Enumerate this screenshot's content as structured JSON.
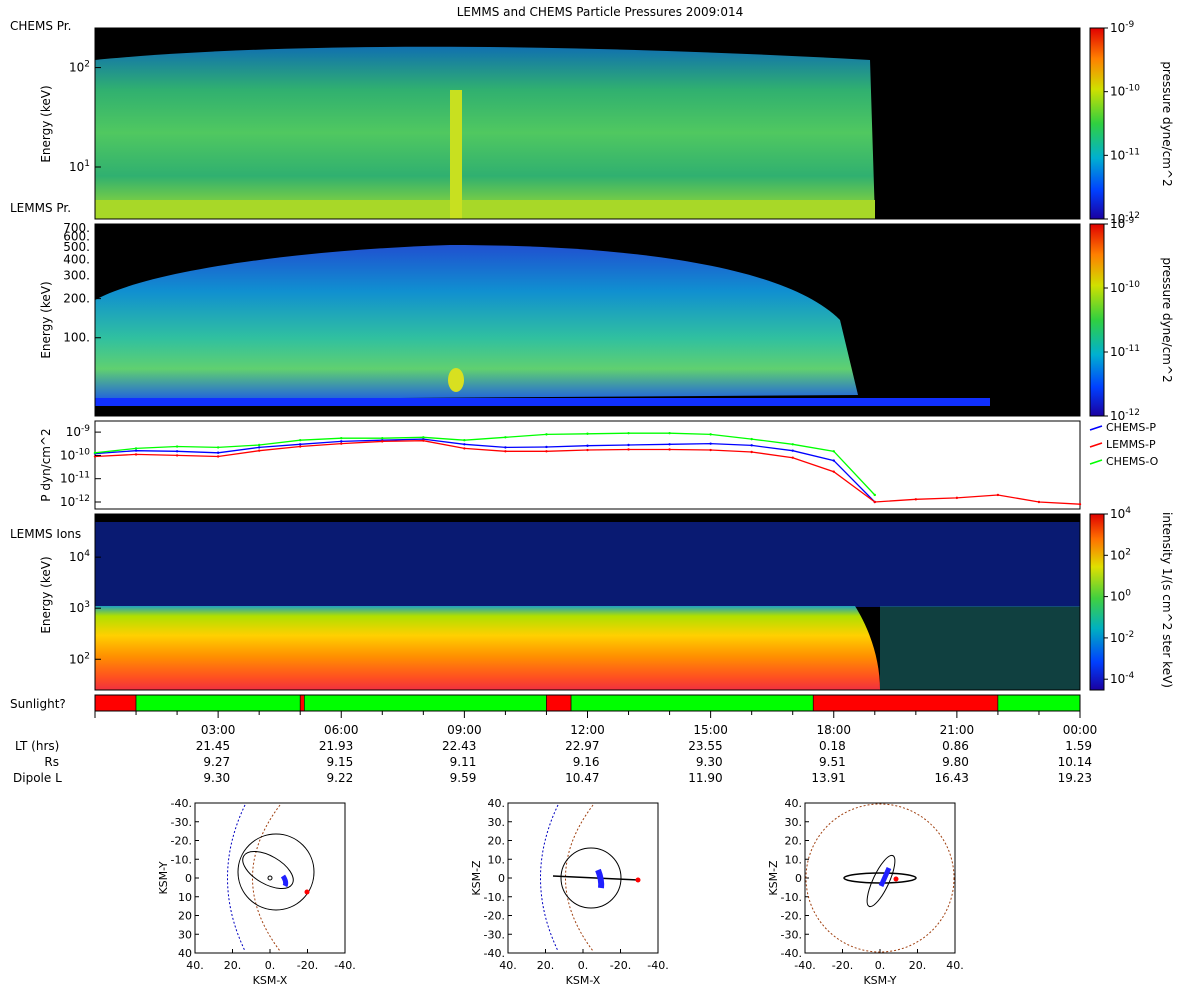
{
  "title": "LEMMS and CHEMS Particle Pressures  2009:014",
  "chart_data": [
    {
      "type": "heatmap",
      "name": "chems",
      "panel_label": "CHEMS Pr.",
      "ylabel": "Energy (keV)",
      "yscale": "log",
      "ylim": [
        3,
        250
      ],
      "yticks": [
        {
          "v": 10,
          "label": "10^1"
        },
        {
          "v": 100,
          "label": "10^2"
        }
      ],
      "colorbar": {
        "label": "pressure dyne/cm^2",
        "scale": "log",
        "range": [
          1e-12,
          1e-09
        ],
        "ticks": [
          {
            "v": 1e-09,
            "label": "10^-9"
          },
          {
            "v": 1e-10,
            "label": "10^-10"
          },
          {
            "v": 1e-11,
            "label": "10^-11"
          },
          {
            "v": 1e-12,
            "label": "10^-12"
          }
        ]
      },
      "data_end_hour": 18.8
    },
    {
      "type": "heatmap",
      "name": "lemms-pressure",
      "panel_label": "LEMMS Pr.",
      "ylabel": "Energy (keV)",
      "yscale": "log",
      "ylim": [
        25,
        750
      ],
      "yticks": [
        {
          "v": 100,
          "label": "100."
        },
        {
          "v": 200,
          "label": "200."
        },
        {
          "v": 300,
          "label": "300."
        },
        {
          "v": 400,
          "label": "400."
        },
        {
          "v": 500,
          "label": "500."
        },
        {
          "v": 600,
          "label": "600."
        },
        {
          "v": 700,
          "label": "700."
        }
      ],
      "colorbar": {
        "label": "pressure dyne/cm^2",
        "scale": "log",
        "range": [
          1e-12,
          1e-09
        ],
        "ticks": [
          {
            "v": 1e-09,
            "label": "10^-9"
          },
          {
            "v": 1e-10,
            "label": "10^-10"
          },
          {
            "v": 1e-11,
            "label": "10^-11"
          },
          {
            "v": 1e-12,
            "label": "10^-12"
          }
        ]
      },
      "data_end_hour": 18.5
    },
    {
      "type": "line",
      "name": "pressure-lines",
      "ylabel": "P dyn/cm^2",
      "yscale": "log",
      "ylim": [
        5e-13,
        3e-09
      ],
      "yticks": [
        {
          "v": 1e-09,
          "label": "10^-9"
        },
        {
          "v": 1e-10,
          "label": "10^-10"
        },
        {
          "v": 1e-11,
          "label": "10^-11"
        },
        {
          "v": 1e-12,
          "label": "10^-12"
        }
      ],
      "x": [
        0,
        1,
        2,
        3,
        4,
        5,
        6,
        7,
        8,
        9,
        10,
        11,
        12,
        13,
        14,
        15,
        16,
        17,
        18,
        19,
        20,
        21,
        22,
        23,
        24
      ],
      "series": [
        {
          "name": "CHEMS-P",
          "color": "#0000ff",
          "values": [
            1.2e-10,
            1.6e-10,
            1.5e-10,
            1.3e-10,
            2.2e-10,
            3e-10,
            4e-10,
            4.5e-10,
            5e-10,
            3e-10,
            2.2e-10,
            2.3e-10,
            2.6e-10,
            2.8e-10,
            3e-10,
            3.2e-10,
            2.7e-10,
            1.6e-10,
            6e-11,
            1e-12,
            null,
            null,
            null,
            null,
            null
          ]
        },
        {
          "name": "LEMMS-P",
          "color": "#ff0000",
          "values": [
            9e-11,
            1.1e-10,
            1e-10,
            9e-11,
            1.6e-10,
            2.4e-10,
            3.2e-10,
            4e-10,
            4.3e-10,
            2e-10,
            1.5e-10,
            1.5e-10,
            1.7e-10,
            1.8e-10,
            1.8e-10,
            1.7e-10,
            1.4e-10,
            8e-11,
            2e-11,
            1e-12,
            1.3e-12,
            1.5e-12,
            2e-12,
            1e-12,
            8e-13
          ]
        },
        {
          "name": "CHEMS-O",
          "color": "#00ff00",
          "values": [
            1.3e-10,
            2e-10,
            2.4e-10,
            2.2e-10,
            2.8e-10,
            4.5e-10,
            5.5e-10,
            5.5e-10,
            6e-10,
            4.5e-10,
            6e-10,
            8e-10,
            8.5e-10,
            9e-10,
            9e-10,
            8e-10,
            5e-10,
            3e-10,
            1.5e-10,
            2e-12,
            null,
            null,
            null,
            null,
            null
          ]
        }
      ]
    },
    {
      "type": "heatmap",
      "name": "lemms-ions",
      "panel_label": "LEMMS Ions",
      "ylabel": "Energy (keV)",
      "yscale": "log",
      "ylim": [
        25,
        70000
      ],
      "yticks": [
        {
          "v": 100,
          "label": "10^2"
        },
        {
          "v": 1000,
          "label": "10^3"
        },
        {
          "v": 10000,
          "label": "10^4"
        }
      ],
      "colorbar": {
        "label": "intensity 1/(s cm^2 ster keV)",
        "scale": "log",
        "range": [
          3e-05,
          10000.0
        ],
        "ticks": [
          {
            "v": 10000.0,
            "label": "10^4"
          },
          {
            "v": 100,
            "label": "10^2"
          },
          {
            "v": 1,
            "label": "10^0"
          },
          {
            "v": 0.01,
            "label": "10^-2"
          },
          {
            "v": 0.0001,
            "label": "10^-4"
          }
        ]
      },
      "data_end_hour": 19.0
    },
    {
      "type": "bar",
      "name": "sunlight",
      "label": "Sunlight?",
      "segments": [
        {
          "start": 0.0,
          "end": 1.0,
          "sunlit": false
        },
        {
          "start": 1.0,
          "end": 5.0,
          "sunlit": true
        },
        {
          "start": 5.0,
          "end": 5.1,
          "sunlit": false
        },
        {
          "start": 5.1,
          "end": 11.0,
          "sunlit": true
        },
        {
          "start": 11.0,
          "end": 11.6,
          "sunlit": false
        },
        {
          "start": 11.6,
          "end": 17.5,
          "sunlit": true
        },
        {
          "start": 17.5,
          "end": 22.0,
          "sunlit": false
        },
        {
          "start": 22.0,
          "end": 24.0,
          "sunlit": true
        }
      ]
    },
    {
      "type": "scatter",
      "name": "orbit-xy",
      "xlabel": "KSM-X",
      "ylabel": "KSM-Y",
      "xlim": [
        40,
        -40
      ],
      "ylim": [
        -40,
        40
      ],
      "xticks": [
        "40.",
        "20.",
        "0.",
        "-20.",
        "-40."
      ],
      "yticks": [
        "-40.",
        "-30.",
        "-20.",
        "-10.",
        "0",
        "10",
        "20",
        "30",
        "40"
      ]
    },
    {
      "type": "scatter",
      "name": "orbit-xz",
      "xlabel": "KSM-X",
      "ylabel": "KSM-Z",
      "xlim": [
        40,
        -40
      ],
      "ylim": [
        40,
        -40
      ],
      "xticks": [
        "40.",
        "20.",
        "0.",
        "-20.",
        "-40."
      ],
      "yticks": [
        "40.",
        "30.",
        "20.",
        "10.",
        "0",
        "-10.",
        "-20.",
        "-30.",
        "-40."
      ]
    },
    {
      "type": "scatter",
      "name": "orbit-yz",
      "xlabel": "KSM-Y",
      "ylabel": "KSM-Z",
      "xlim": [
        -40,
        40
      ],
      "ylim": [
        40,
        -40
      ],
      "xticks": [
        "-40.",
        "-20.",
        "0.",
        "20.",
        "40."
      ],
      "yticks": [
        "40.",
        "30.",
        "20.",
        "10.",
        "0",
        "-10.",
        "-20.",
        "-30.",
        "-40."
      ]
    }
  ],
  "time_axis": {
    "ticks": [
      "03:00",
      "06:00",
      "09:00",
      "12:00",
      "15:00",
      "18:00",
      "21:00",
      "00:00"
    ],
    "rows": [
      {
        "label": "LT (hrs)",
        "values": [
          "21.45",
          "21.93",
          "22.43",
          "22.97",
          "23.55",
          "0.18",
          "0.86",
          "1.59"
        ]
      },
      {
        "label": "Rs",
        "values": [
          "9.27",
          "9.15",
          "9.11",
          "9.16",
          "9.30",
          "9.51",
          "9.80",
          "10.14"
        ]
      },
      {
        "label": "Dipole L",
        "values": [
          "9.30",
          "9.22",
          "9.59",
          "10.47",
          "11.90",
          "13.91",
          "16.43",
          "19.23"
        ]
      }
    ]
  },
  "colors": {
    "sunlit": "#00ff00",
    "shadow": "#ff0000",
    "background": "#000000"
  }
}
